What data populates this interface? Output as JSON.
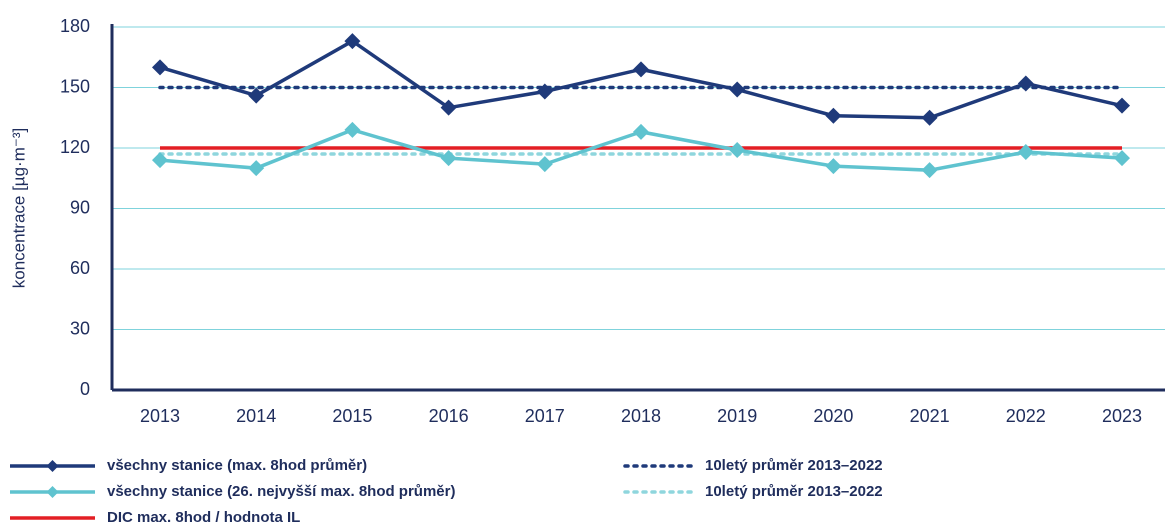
{
  "chart_data": {
    "type": "line",
    "y_label": "koncentrace [µg·m⁻³]",
    "categories": [
      "2013",
      "2014",
      "2015",
      "2016",
      "2017",
      "2018",
      "2019",
      "2020",
      "2021",
      "2022",
      "2023"
    ],
    "ylim": [
      0,
      180
    ],
    "yticks": [
      0,
      30,
      60,
      90,
      120,
      150,
      180
    ],
    "grid": true,
    "series": [
      {
        "name": "všechny stanice (max. 8hod průměr)",
        "color": "#1f3a7a",
        "line_style": "solid",
        "marker": "diamond",
        "values": [
          160,
          146,
          173,
          140,
          148,
          159,
          149,
          136,
          135,
          152,
          141
        ]
      },
      {
        "name": "všechny stanice (26. nejvyšší max. 8hod průměr)",
        "color": "#5fc3cf",
        "line_style": "solid",
        "marker": "diamond",
        "values": [
          114,
          110,
          129,
          115,
          112,
          128,
          119,
          111,
          109,
          118,
          115
        ]
      },
      {
        "name": "DIC max. 8hod / hodnota IL",
        "color": "#e31e24",
        "line_style": "solid",
        "marker": "none",
        "values": [
          120,
          120,
          120,
          120,
          120,
          120,
          120,
          120,
          120,
          120,
          120
        ]
      },
      {
        "name": "10letý průměr 2013–2022",
        "color": "#1f3a7a",
        "line_style": "dotted",
        "marker": "none",
        "values": [
          150,
          150,
          150,
          150,
          150,
          150,
          150,
          150,
          150,
          150,
          150
        ]
      },
      {
        "name": "10letý průměr 2013–2022",
        "color": "#8fd6dd",
        "line_style": "dotted",
        "marker": "none",
        "values": [
          117,
          117,
          117,
          117,
          117,
          117,
          117,
          117,
          117,
          117,
          117
        ]
      }
    ]
  }
}
